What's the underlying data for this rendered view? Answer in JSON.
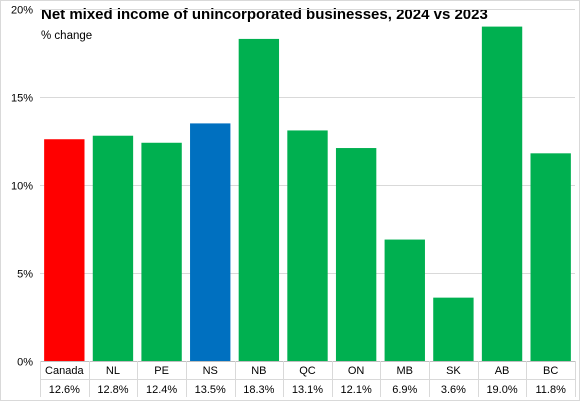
{
  "chart_data": {
    "type": "bar",
    "title": "Net mixed income of unincorporated businesses, 2024 vs 2023",
    "subtitle": "% change",
    "categories": [
      "Canada",
      "NL",
      "PE",
      "NS",
      "NB",
      "QC",
      "ON",
      "MB",
      "SK",
      "AB",
      "BC"
    ],
    "values": [
      12.6,
      12.8,
      12.4,
      13.5,
      18.3,
      13.1,
      12.1,
      6.9,
      3.6,
      19.0,
      11.8
    ],
    "data_labels": [
      "12.6%",
      "12.8%",
      "12.4%",
      "13.5%",
      "18.3%",
      "13.1%",
      "12.1%",
      "6.9%",
      "3.6%",
      "19.0%",
      "11.8%"
    ],
    "colors": [
      "#ff0000",
      "#00b050",
      "#00b050",
      "#0070c0",
      "#00b050",
      "#00b050",
      "#00b050",
      "#00b050",
      "#00b050",
      "#00b050",
      "#00b050"
    ],
    "yticks": [
      0,
      5,
      10,
      15,
      20
    ],
    "ytick_labels": [
      "0%",
      "5%",
      "10%",
      "15%",
      "20%"
    ],
    "ylim": [
      0,
      20
    ],
    "grid": true,
    "legend": "none"
  }
}
